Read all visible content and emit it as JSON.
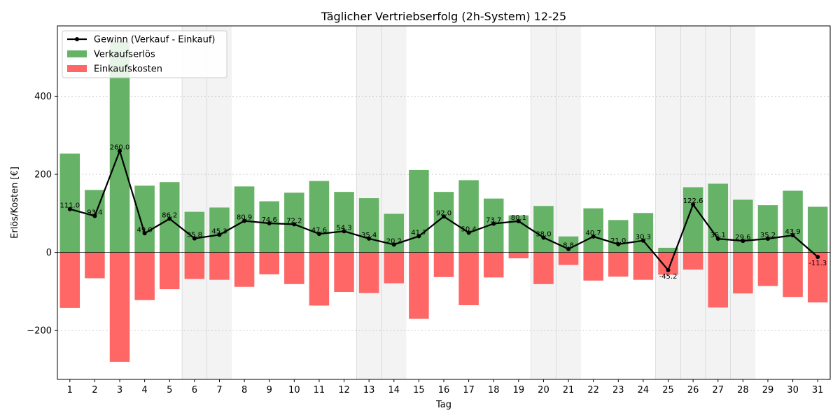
{
  "chart_data": {
    "type": "bar",
    "title": "Täglicher Vertriebserfolg (2h-System) 12-25",
    "xlabel": "Tag",
    "ylabel": "Erlös/Kosten [€]",
    "ylim": [
      -325,
      580
    ],
    "yticks": [
      -200,
      0,
      200,
      400
    ],
    "grid": true,
    "legend_position": "top-left",
    "categories": [
      "1",
      "2",
      "3",
      "4",
      "5",
      "6",
      "7",
      "8",
      "9",
      "10",
      "11",
      "12",
      "13",
      "14",
      "15",
      "16",
      "17",
      "18",
      "19",
      "20",
      "21",
      "22",
      "23",
      "24",
      "25",
      "26",
      "27",
      "28",
      "29",
      "30",
      "31"
    ],
    "weekend_days": [
      6,
      7,
      13,
      14,
      20,
      21,
      25,
      26,
      27,
      28
    ],
    "series": [
      {
        "name": "Gewinn (Verkauf - Einkauf)",
        "kind": "line",
        "color": "#000000",
        "values": [
          111.0,
          93.4,
          260.0,
          49.0,
          86.2,
          35.8,
          45.3,
          80.9,
          74.6,
          72.2,
          47.6,
          54.3,
          35.4,
          20.2,
          41.7,
          92.0,
          50.4,
          73.7,
          80.1,
          38.0,
          8.8,
          40.7,
          21.0,
          30.3,
          -45.2,
          122.6,
          35.1,
          29.6,
          35.2,
          43.9,
          -11.3
        ],
        "labels": [
          "111.0",
          "93.4",
          "260.0",
          "49.0",
          "86.2",
          "35.8",
          "45.3",
          "80.9",
          "74.6",
          "72.2",
          "47.6",
          "54.3",
          "35.4",
          "20.2",
          "41.7",
          "92.0",
          "50.4",
          "73.7",
          "80.1",
          "38.0",
          "8.8",
          "40.7",
          "21.0",
          "30.3",
          "-45.2",
          "122.6",
          "35.1",
          "29.6",
          "35.2",
          "43.9",
          "-11.3"
        ]
      },
      {
        "name": "Verkaufserlös",
        "kind": "bar",
        "color": "#66b266",
        "values": [
          253,
          160,
          540,
          171,
          180,
          104,
          115,
          169,
          131,
          153,
          183,
          155,
          139,
          99,
          211,
          155,
          185,
          138,
          95,
          119,
          41,
          113,
          83,
          101,
          12,
          167,
          176,
          135,
          121,
          158,
          117
        ]
      },
      {
        "name": "Einkaufskosten",
        "kind": "bar",
        "color": "#ff6666",
        "values": [
          -142,
          -66,
          -280,
          -122,
          -94,
          -68,
          -70,
          -88,
          -56,
          -81,
          -136,
          -101,
          -104,
          -79,
          -170,
          -63,
          -135,
          -64,
          -15,
          -81,
          -32,
          -72,
          -62,
          -70,
          -57,
          -44,
          -141,
          -105,
          -86,
          -114,
          -128
        ]
      }
    ]
  }
}
